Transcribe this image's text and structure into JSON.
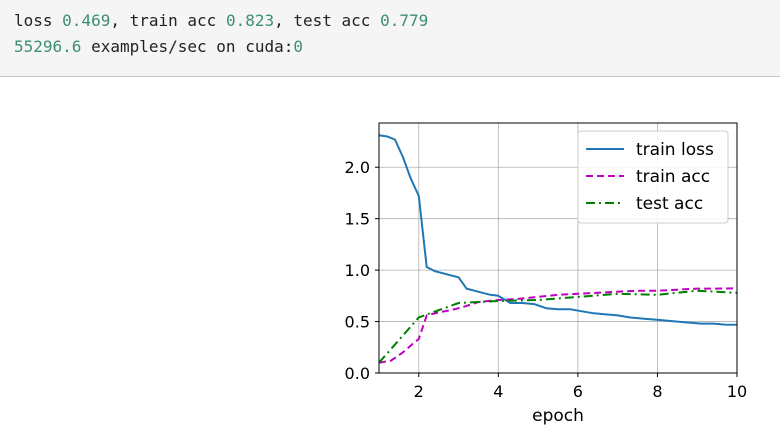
{
  "console": {
    "line1": {
      "loss_label": "loss ",
      "loss_value": "0.469",
      "sep1": ", train acc ",
      "train_acc_value": "0.823",
      "sep2": ", test acc ",
      "test_acc_value": "0.779"
    },
    "line2": {
      "throughput_value": "55296.6",
      "mid_text": " examples/sec on cuda:",
      "device_index": "0"
    }
  },
  "colors": {
    "train_loss": "#1f77b4",
    "train_acc": "#bf00bf",
    "test_acc": "#008000",
    "grid": "#b0b0b0",
    "number_highlight": "#3d8f6e"
  },
  "chart_data": {
    "type": "line",
    "xlabel": "epoch",
    "ylabel": "",
    "xlim": [
      1,
      10
    ],
    "ylim": [
      0,
      2.43
    ],
    "xticks": [
      2,
      4,
      6,
      8,
      10
    ],
    "yticks": [
      0.0,
      0.5,
      1.0,
      1.5,
      2.0
    ],
    "xtick_labels": [
      "2",
      "4",
      "6",
      "8",
      "10"
    ],
    "ytick_labels": [
      "0.0",
      "0.5",
      "1.0",
      "1.5",
      "2.0"
    ],
    "grid": true,
    "legend_position": "top-right",
    "series": [
      {
        "name": "train loss",
        "style": "solid",
        "x": [
          1.0,
          1.2,
          1.4,
          1.6,
          1.8,
          2.0,
          2.2,
          2.4,
          2.6,
          2.8,
          3.0,
          3.2,
          3.4,
          3.6,
          3.8,
          4.0,
          4.3,
          4.6,
          4.9,
          5.2,
          5.5,
          5.8,
          6.1,
          6.4,
          6.7,
          7.0,
          7.3,
          7.6,
          7.9,
          8.2,
          8.5,
          8.8,
          9.1,
          9.4,
          9.7,
          10.0
        ],
        "y": [
          2.31,
          2.3,
          2.27,
          2.1,
          1.89,
          1.72,
          1.03,
          0.99,
          0.97,
          0.95,
          0.93,
          0.82,
          0.8,
          0.78,
          0.76,
          0.75,
          0.68,
          0.68,
          0.67,
          0.63,
          0.62,
          0.62,
          0.6,
          0.58,
          0.57,
          0.56,
          0.54,
          0.53,
          0.52,
          0.51,
          0.5,
          0.49,
          0.48,
          0.48,
          0.47,
          0.469
        ]
      },
      {
        "name": "train acc",
        "style": "dashed",
        "x": [
          1.0,
          1.3,
          1.6,
          1.9,
          2.0,
          2.2,
          2.5,
          2.8,
          3.1,
          3.5,
          4.0,
          4.5,
          5.0,
          5.5,
          6.0,
          6.5,
          7.0,
          7.5,
          8.0,
          8.5,
          9.0,
          9.5,
          10.0
        ],
        "y": [
          0.1,
          0.12,
          0.2,
          0.3,
          0.33,
          0.56,
          0.59,
          0.61,
          0.64,
          0.69,
          0.71,
          0.72,
          0.74,
          0.76,
          0.77,
          0.78,
          0.79,
          0.8,
          0.8,
          0.81,
          0.82,
          0.82,
          0.823
        ]
      },
      {
        "name": "test acc",
        "style": "dashdot",
        "x": [
          1.0,
          2.0,
          3.0,
          4.0,
          5.0,
          6.0,
          7.0,
          8.0,
          9.0,
          10.0
        ],
        "y": [
          0.1,
          0.54,
          0.68,
          0.7,
          0.71,
          0.74,
          0.77,
          0.76,
          0.8,
          0.779
        ]
      }
    ]
  }
}
